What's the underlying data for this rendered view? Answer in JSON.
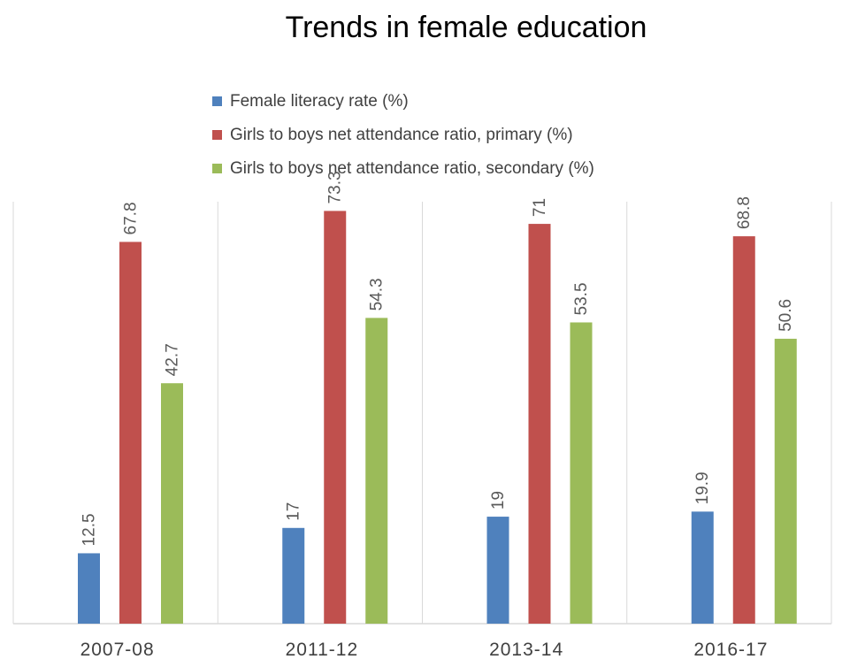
{
  "chart_data": {
    "type": "bar",
    "title": "Trends in female education",
    "xlabel": "",
    "ylabel": "",
    "ylim": [
      0,
      80
    ],
    "grid": false,
    "legend_position": "top",
    "categories": [
      "2007-08",
      "2011-12",
      "2013-14",
      "2016-17"
    ],
    "series": [
      {
        "name": "Female literacy rate (%)",
        "color": "#4f81bd",
        "values": [
          12.5,
          17,
          19,
          19.9
        ],
        "labels": [
          "12.5",
          "17",
          "19",
          "19.9"
        ]
      },
      {
        "name": "Girls to boys net attendance ratio, primary (%)",
        "color": "#c0504d",
        "values": [
          67.8,
          73.3,
          71,
          68.8
        ],
        "labels": [
          "67.8",
          "73.3",
          "71",
          "68.8"
        ]
      },
      {
        "name": "Girls to boys net attendance ratio, secondary (%)",
        "color": "#9bbb59",
        "values": [
          42.7,
          54.3,
          53.5,
          50.6
        ],
        "labels": [
          "42.7",
          "54.3",
          "53.5",
          "50.6"
        ]
      }
    ]
  }
}
